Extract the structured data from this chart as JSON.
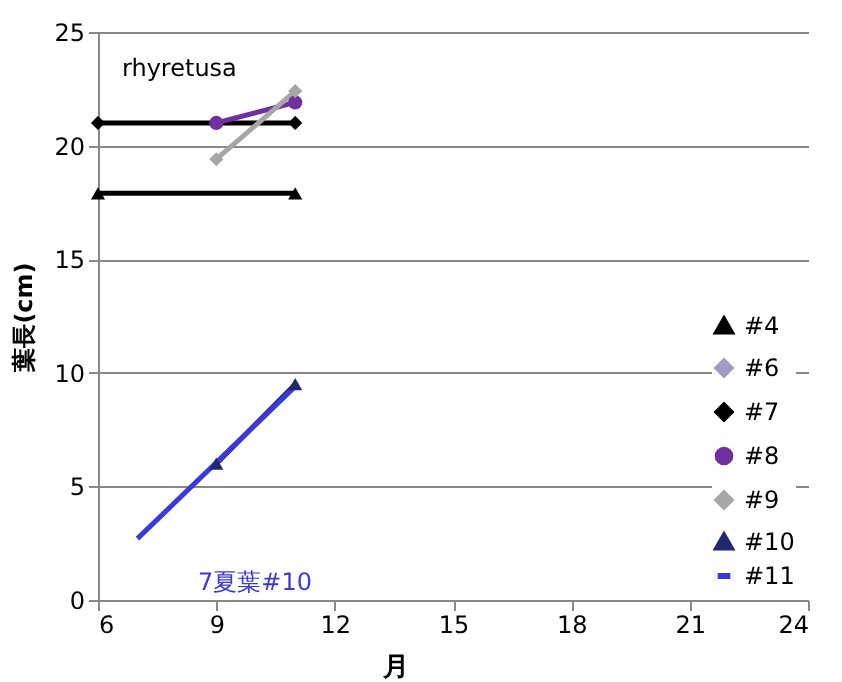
{
  "chart_data": {
    "type": "line",
    "xlabel": "月",
    "ylabel": "葉長(cm)",
    "xlim": [
      6,
      24
    ],
    "xticks": [
      6,
      9,
      12,
      15,
      18,
      21,
      24
    ],
    "ylim": [
      0,
      25
    ],
    "yticks": [
      0,
      5,
      10,
      15,
      20,
      25
    ],
    "grid": "y",
    "legend": "bottom right",
    "series": [
      {
        "name": "#4",
        "color": "#000000",
        "marker": "triangle",
        "x": [
          6,
          11
        ],
        "values": [
          17.9,
          17.9
        ]
      },
      {
        "name": "#6",
        "color": "#a09cc8",
        "marker": "diamond"
      },
      {
        "name": "#7",
        "color": "#000000",
        "marker": "diamond",
        "x": [
          6,
          11
        ],
        "values": [
          21,
          21
        ]
      },
      {
        "name": "#8",
        "color": "#7030a0",
        "marker": "circle",
        "x": [
          9,
          11
        ],
        "values": [
          21,
          21.9
        ]
      },
      {
        "name": "#9",
        "color": "#a6a6a6",
        "marker": "diamond",
        "x": [
          9,
          11
        ],
        "values": [
          19.4,
          22.4
        ]
      },
      {
        "name": "#10",
        "color": "#1f2a6e",
        "marker": "triangle",
        "x": [
          9,
          11
        ],
        "values": [
          6,
          9.5
        ]
      },
      {
        "name": "#11",
        "color": "#3a3adc",
        "marker": "none",
        "x": [
          7,
          11
        ],
        "values": [
          2.7,
          9.4
        ]
      }
    ],
    "annotations": [
      "rhyretusa",
      "7夏葉#10"
    ]
  }
}
